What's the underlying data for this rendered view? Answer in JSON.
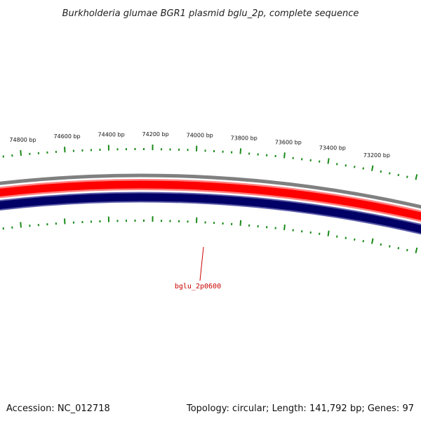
{
  "title": "Burkholderia glumae BGR1 plasmid bglu_2p, complete sequence",
  "footer": {
    "accession": "Accession: NC_012718",
    "summary": "Topology: circular; Length: 141,792 bp; Genes: 97"
  },
  "colors": {
    "tick": "#1a8a1a",
    "backbone_outer": "#808080",
    "forward_strand": "#ff0000",
    "forward_strand_edge": "#ff8080",
    "reverse_strand": "#000066",
    "reverse_strand_edge": "#5a5aa8",
    "gene_label": "#cc0000"
  },
  "ticks": {
    "labels": [
      "74800 bp",
      "74600 bp",
      "74400 bp",
      "74200 bp",
      "74000 bp",
      "73800 bp",
      "73600 bp",
      "73400 bp",
      "73200 bp"
    ]
  },
  "genes": [
    {
      "label": "bglu_2p0600"
    }
  ]
}
